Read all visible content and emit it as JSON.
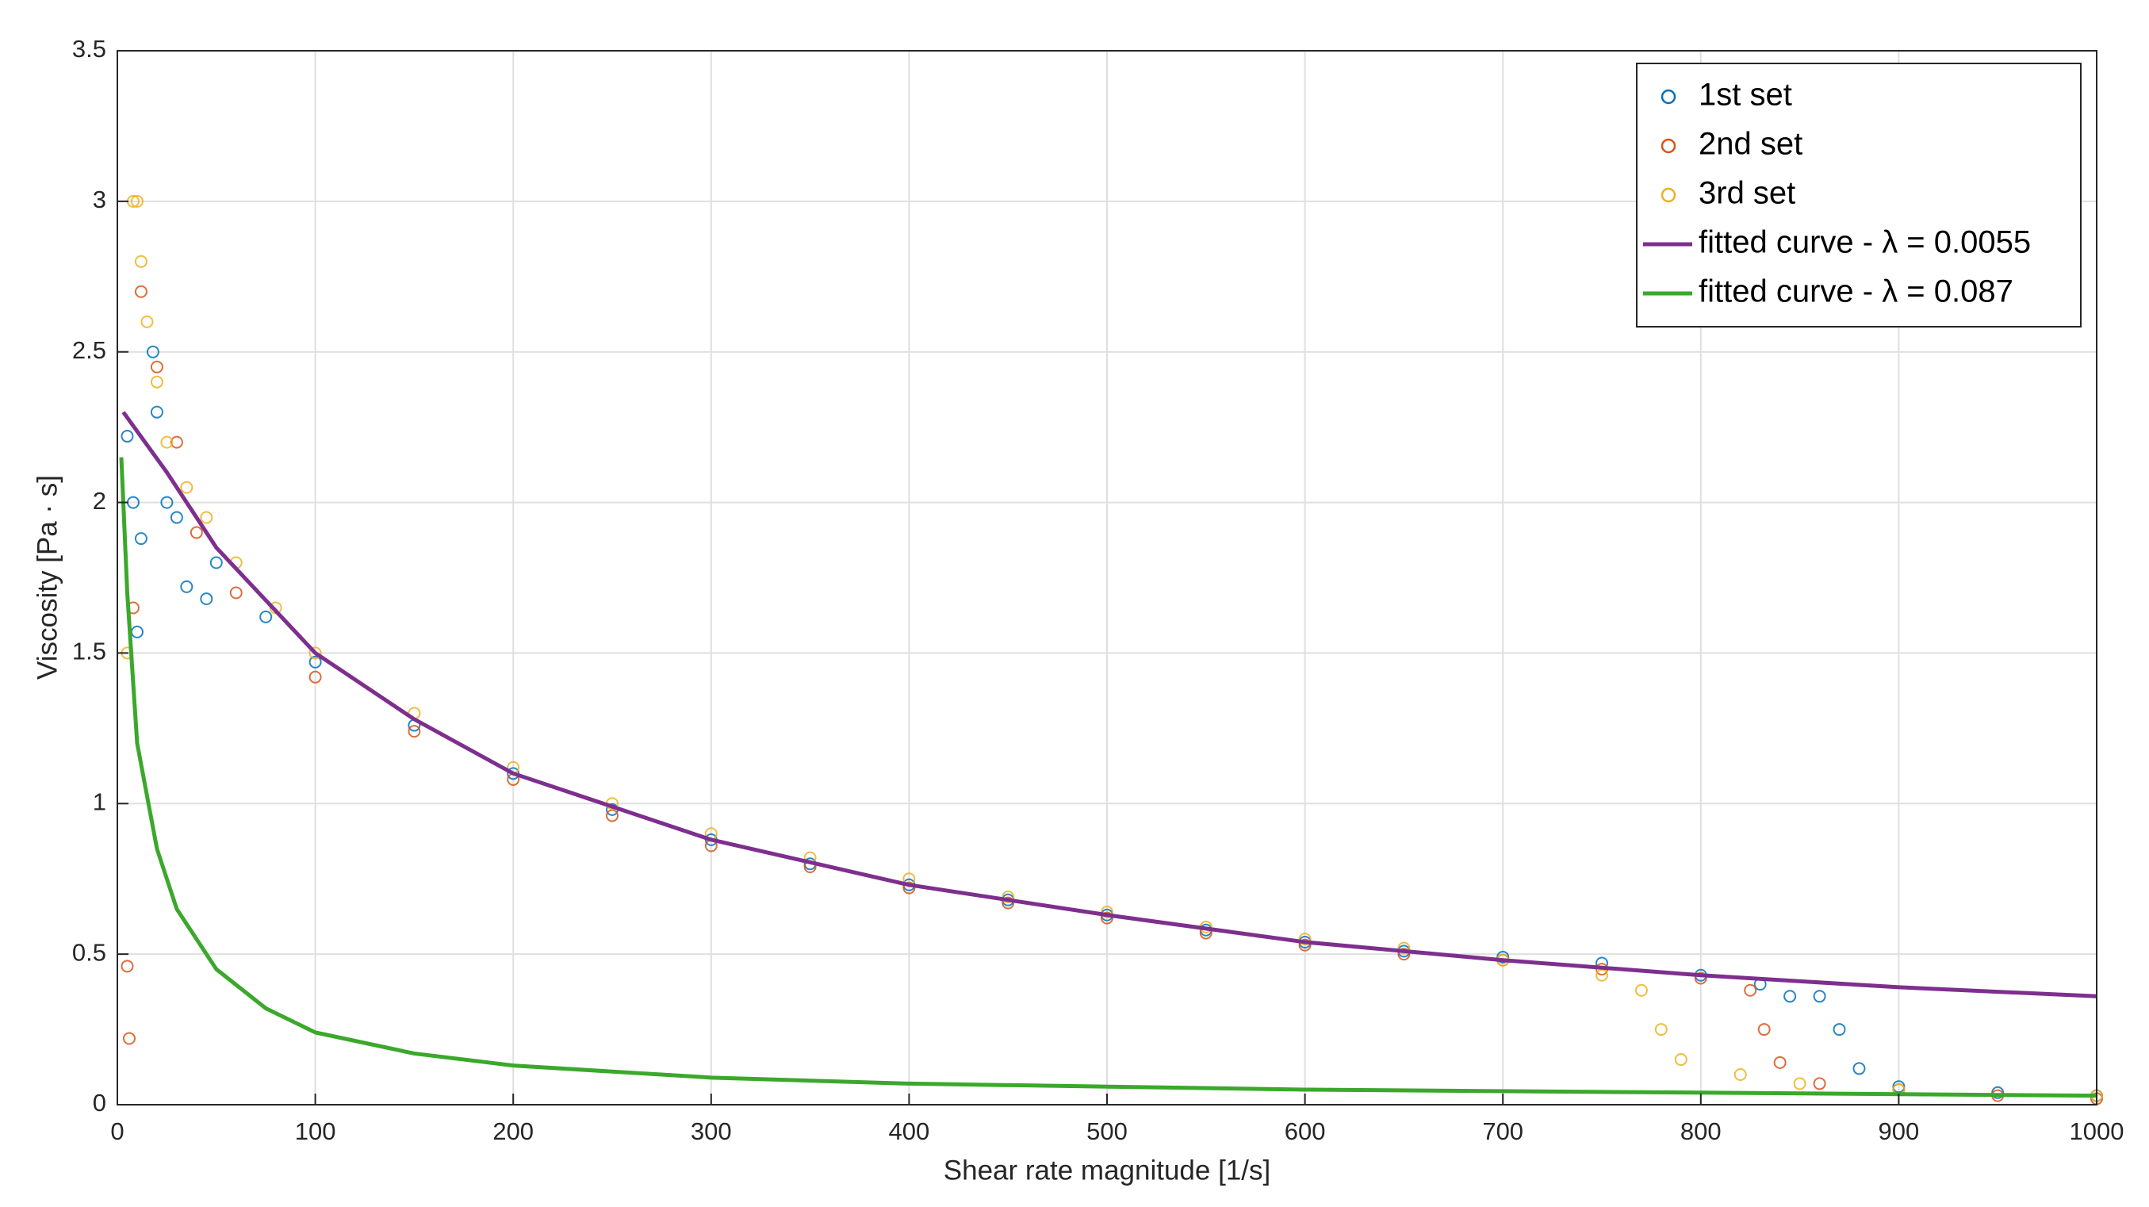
{
  "chart_data": {
    "type": "scatter",
    "xlabel": "Shear rate magnitude [1/s]",
    "ylabel": "Viscosity [Pa · s]",
    "xlim": [
      0,
      1000
    ],
    "ylim": [
      0,
      3.5
    ],
    "xticks": [
      0,
      100,
      200,
      300,
      400,
      500,
      600,
      700,
      800,
      900,
      1000
    ],
    "yticks": [
      0,
      0.5,
      1,
      1.5,
      2,
      2.5,
      3,
      3.5
    ],
    "grid": true,
    "legend": "northeast",
    "series": [
      {
        "name": "1st set",
        "type": "scatter",
        "color": "#0072bd",
        "x": [
          5,
          8,
          10,
          12,
          18,
          20,
          25,
          30,
          35,
          45,
          50,
          75,
          100,
          150,
          200,
          250,
          300,
          350,
          400,
          450,
          500,
          550,
          600,
          650,
          700,
          750,
          800,
          830,
          845,
          860,
          870,
          880,
          900,
          950,
          1000
        ],
        "values": [
          2.22,
          2.0,
          1.57,
          1.88,
          2.5,
          2.3,
          2.0,
          1.95,
          1.72,
          1.68,
          1.8,
          1.62,
          1.47,
          1.26,
          1.1,
          0.98,
          0.88,
          0.8,
          0.73,
          0.68,
          0.63,
          0.58,
          0.54,
          0.51,
          0.49,
          0.47,
          0.43,
          0.4,
          0.36,
          0.36,
          0.25,
          0.12,
          0.06,
          0.04,
          0.03
        ]
      },
      {
        "name": "2nd set",
        "type": "scatter",
        "color": "#d95319",
        "x": [
          5,
          6,
          8,
          12,
          20,
          30,
          40,
          60,
          100,
          150,
          200,
          250,
          300,
          350,
          400,
          450,
          500,
          550,
          600,
          650,
          700,
          750,
          800,
          825,
          832,
          840,
          860,
          900,
          950,
          1000
        ],
        "values": [
          0.46,
          0.22,
          1.65,
          2.7,
          2.45,
          2.2,
          1.9,
          1.7,
          1.42,
          1.24,
          1.08,
          0.96,
          0.86,
          0.79,
          0.72,
          0.67,
          0.62,
          0.57,
          0.53,
          0.5,
          0.48,
          0.45,
          0.42,
          0.38,
          0.25,
          0.14,
          0.07,
          0.05,
          0.03,
          0.02
        ]
      },
      {
        "name": "3rd set",
        "type": "scatter",
        "color": "#edb120",
        "x": [
          5,
          8,
          10,
          12,
          15,
          20,
          25,
          35,
          45,
          60,
          80,
          100,
          150,
          200,
          250,
          300,
          350,
          400,
          450,
          500,
          550,
          600,
          650,
          700,
          750,
          770,
          780,
          790,
          820,
          850,
          900,
          1000
        ],
        "values": [
          1.5,
          3.0,
          3.0,
          2.8,
          2.6,
          2.4,
          2.2,
          2.05,
          1.95,
          1.8,
          1.65,
          1.5,
          1.3,
          1.12,
          1.0,
          0.9,
          0.82,
          0.75,
          0.69,
          0.64,
          0.59,
          0.55,
          0.52,
          0.48,
          0.43,
          0.38,
          0.25,
          0.15,
          0.1,
          0.07,
          0.05,
          0.03
        ]
      },
      {
        "name": "fitted curve - λ = 0.0055",
        "type": "line",
        "color": "#7e2f8e",
        "x": [
          3,
          25,
          50,
          100,
          150,
          200,
          300,
          400,
          500,
          600,
          700,
          800,
          900,
          1000
        ],
        "values": [
          2.3,
          2.1,
          1.85,
          1.5,
          1.28,
          1.1,
          0.88,
          0.73,
          0.63,
          0.54,
          0.48,
          0.43,
          0.39,
          0.36
        ]
      },
      {
        "name": "fitted curve - λ = 0.087",
        "type": "line",
        "color": "#3ba82c",
        "x": [
          2,
          5,
          10,
          20,
          30,
          50,
          75,
          100,
          150,
          200,
          300,
          400,
          600,
          800,
          1000
        ],
        "values": [
          2.15,
          1.7,
          1.2,
          0.85,
          0.65,
          0.45,
          0.32,
          0.24,
          0.17,
          0.13,
          0.09,
          0.07,
          0.05,
          0.04,
          0.03
        ]
      }
    ]
  }
}
